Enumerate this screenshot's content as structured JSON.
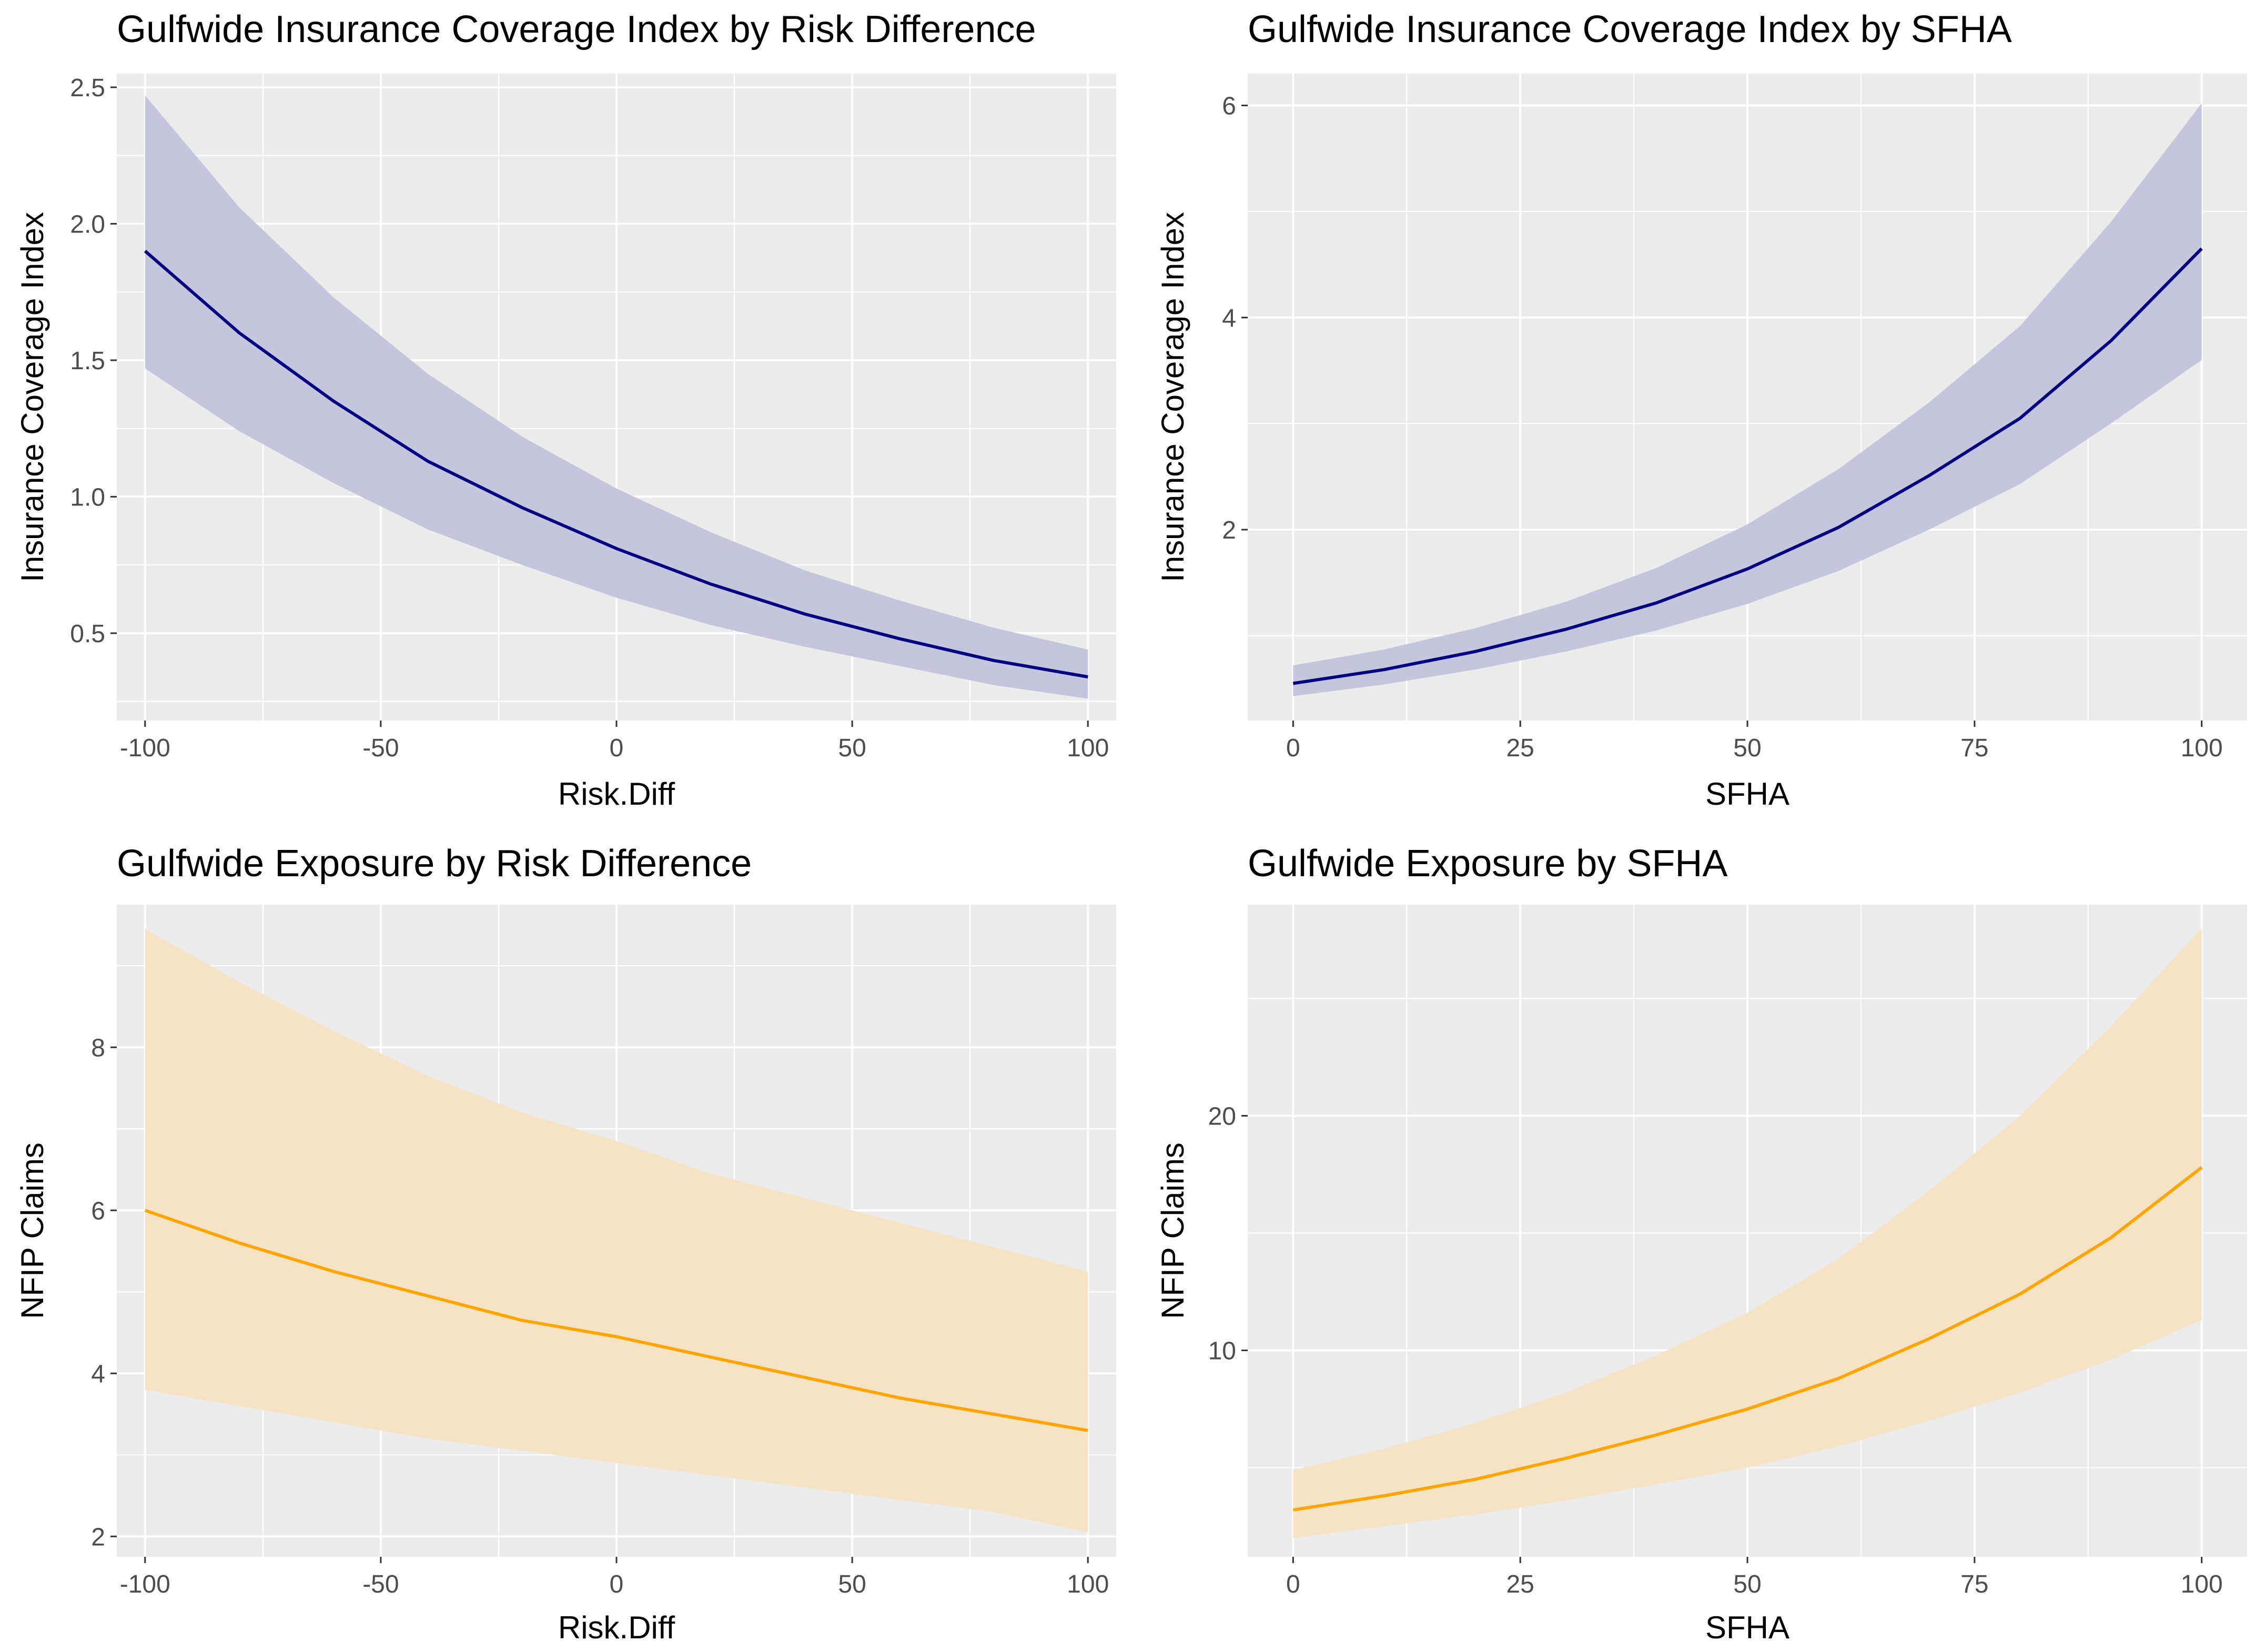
{
  "chart_data": [
    {
      "type": "line",
      "title": "Gulfwide Insurance Coverage Index by Risk Difference",
      "xlabel": "Risk.Diff",
      "ylabel": "Insurance Coverage Index",
      "xlim": [
        -106,
        106
      ],
      "ylim": [
        0.18,
        2.55
      ],
      "xticks": [
        -100,
        -50,
        0,
        50,
        100
      ],
      "xtick_labels": [
        "-100",
        "-50",
        "0",
        "50",
        "100"
      ],
      "yticks": [
        0.5,
        1.0,
        1.5,
        2.0,
        2.5
      ],
      "ytick_labels": [
        "0.5",
        "1.0",
        "1.5",
        "2.0",
        "2.5"
      ],
      "line_color": "#000080",
      "ribbon_color": "#c5c5de",
      "x": [
        -100,
        -80,
        -60,
        -40,
        -20,
        0,
        20,
        40,
        60,
        80,
        100
      ],
      "fit": [
        1.9,
        1.6,
        1.35,
        1.13,
        0.96,
        0.81,
        0.68,
        0.57,
        0.48,
        0.4,
        0.34
      ],
      "lower": [
        1.47,
        1.24,
        1.05,
        0.88,
        0.75,
        0.63,
        0.53,
        0.45,
        0.38,
        0.31,
        0.26
      ],
      "upper": [
        2.47,
        2.06,
        1.73,
        1.45,
        1.22,
        1.03,
        0.87,
        0.73,
        0.62,
        0.52,
        0.44
      ]
    },
    {
      "type": "line",
      "title": "Gulfwide Insurance Coverage Index by SFHA",
      "xlabel": "SFHA",
      "ylabel": "Insurance Coverage Index",
      "xlim": [
        -5,
        105
      ],
      "ylim": [
        0.2,
        6.3
      ],
      "xticks": [
        0,
        25,
        50,
        75,
        100
      ],
      "xtick_labels": [
        "0",
        "25",
        "50",
        "75",
        "100"
      ],
      "yticks": [
        2,
        4,
        6
      ],
      "ytick_labels": [
        "2",
        "4",
        "6"
      ],
      "line_color": "#000080",
      "ribbon_color": "#c5c5de",
      "x": [
        0,
        10,
        20,
        30,
        40,
        50,
        60,
        70,
        80,
        90,
        100
      ],
      "fit": [
        0.55,
        0.68,
        0.85,
        1.06,
        1.31,
        1.63,
        2.02,
        2.51,
        3.05,
        3.78,
        4.65
      ],
      "lower": [
        0.43,
        0.54,
        0.68,
        0.85,
        1.05,
        1.3,
        1.61,
        2.0,
        2.43,
        3.0,
        3.6
      ],
      "upper": [
        0.72,
        0.87,
        1.07,
        1.32,
        1.64,
        2.05,
        2.57,
        3.2,
        3.92,
        4.9,
        6.02
      ]
    },
    {
      "type": "line",
      "title": "Gulfwide Exposure by Risk Difference",
      "xlabel": "Risk.Diff",
      "ylabel": "NFIP Claims",
      "xlim": [
        -106,
        106
      ],
      "ylim": [
        1.75,
        9.75
      ],
      "xticks": [
        -100,
        -50,
        0,
        50,
        100
      ],
      "xtick_labels": [
        "-100",
        "-50",
        "0",
        "50",
        "100"
      ],
      "yticks": [
        2,
        4,
        6,
        8
      ],
      "ytick_labels": [
        "2",
        "4",
        "6",
        "8"
      ],
      "line_color": "#ffa500",
      "ribbon_color": "#f6e2c5",
      "x": [
        -100,
        -80,
        -60,
        -40,
        -20,
        0,
        20,
        40,
        60,
        80,
        100
      ],
      "fit": [
        6.0,
        5.6,
        5.25,
        4.95,
        4.65,
        4.45,
        4.2,
        3.95,
        3.7,
        3.5,
        3.3
      ],
      "lower": [
        3.8,
        3.6,
        3.4,
        3.2,
        3.05,
        2.9,
        2.75,
        2.6,
        2.45,
        2.3,
        2.05
      ],
      "upper": [
        9.45,
        8.8,
        8.2,
        7.65,
        7.2,
        6.85,
        6.45,
        6.15,
        5.85,
        5.55,
        5.25
      ]
    },
    {
      "type": "line",
      "title": "Gulfwide Exposure by SFHA",
      "xlabel": "SFHA",
      "ylabel": "NFIP Claims",
      "xlim": [
        -5,
        105
      ],
      "ylim": [
        1.2,
        29.0
      ],
      "xticks": [
        0,
        25,
        50,
        75,
        100
      ],
      "xtick_labels": [
        "0",
        "25",
        "50",
        "75",
        "100"
      ],
      "yticks": [
        10,
        20
      ],
      "ytick_labels": [
        "10",
        "20"
      ],
      "line_color": "#ffa500",
      "ribbon_color": "#f6e2c5",
      "x": [
        0,
        10,
        20,
        30,
        40,
        50,
        60,
        70,
        80,
        90,
        100
      ],
      "fit": [
        3.2,
        3.8,
        4.5,
        5.4,
        6.4,
        7.5,
        8.8,
        10.5,
        12.4,
        14.8,
        17.8
      ],
      "lower": [
        2.0,
        2.5,
        3.0,
        3.6,
        4.3,
        5.0,
        5.9,
        7.0,
        8.2,
        9.6,
        11.3
      ],
      "upper": [
        4.9,
        5.8,
        6.9,
        8.2,
        9.8,
        11.6,
        13.9,
        16.8,
        20.0,
        23.8,
        28.0
      ]
    }
  ]
}
